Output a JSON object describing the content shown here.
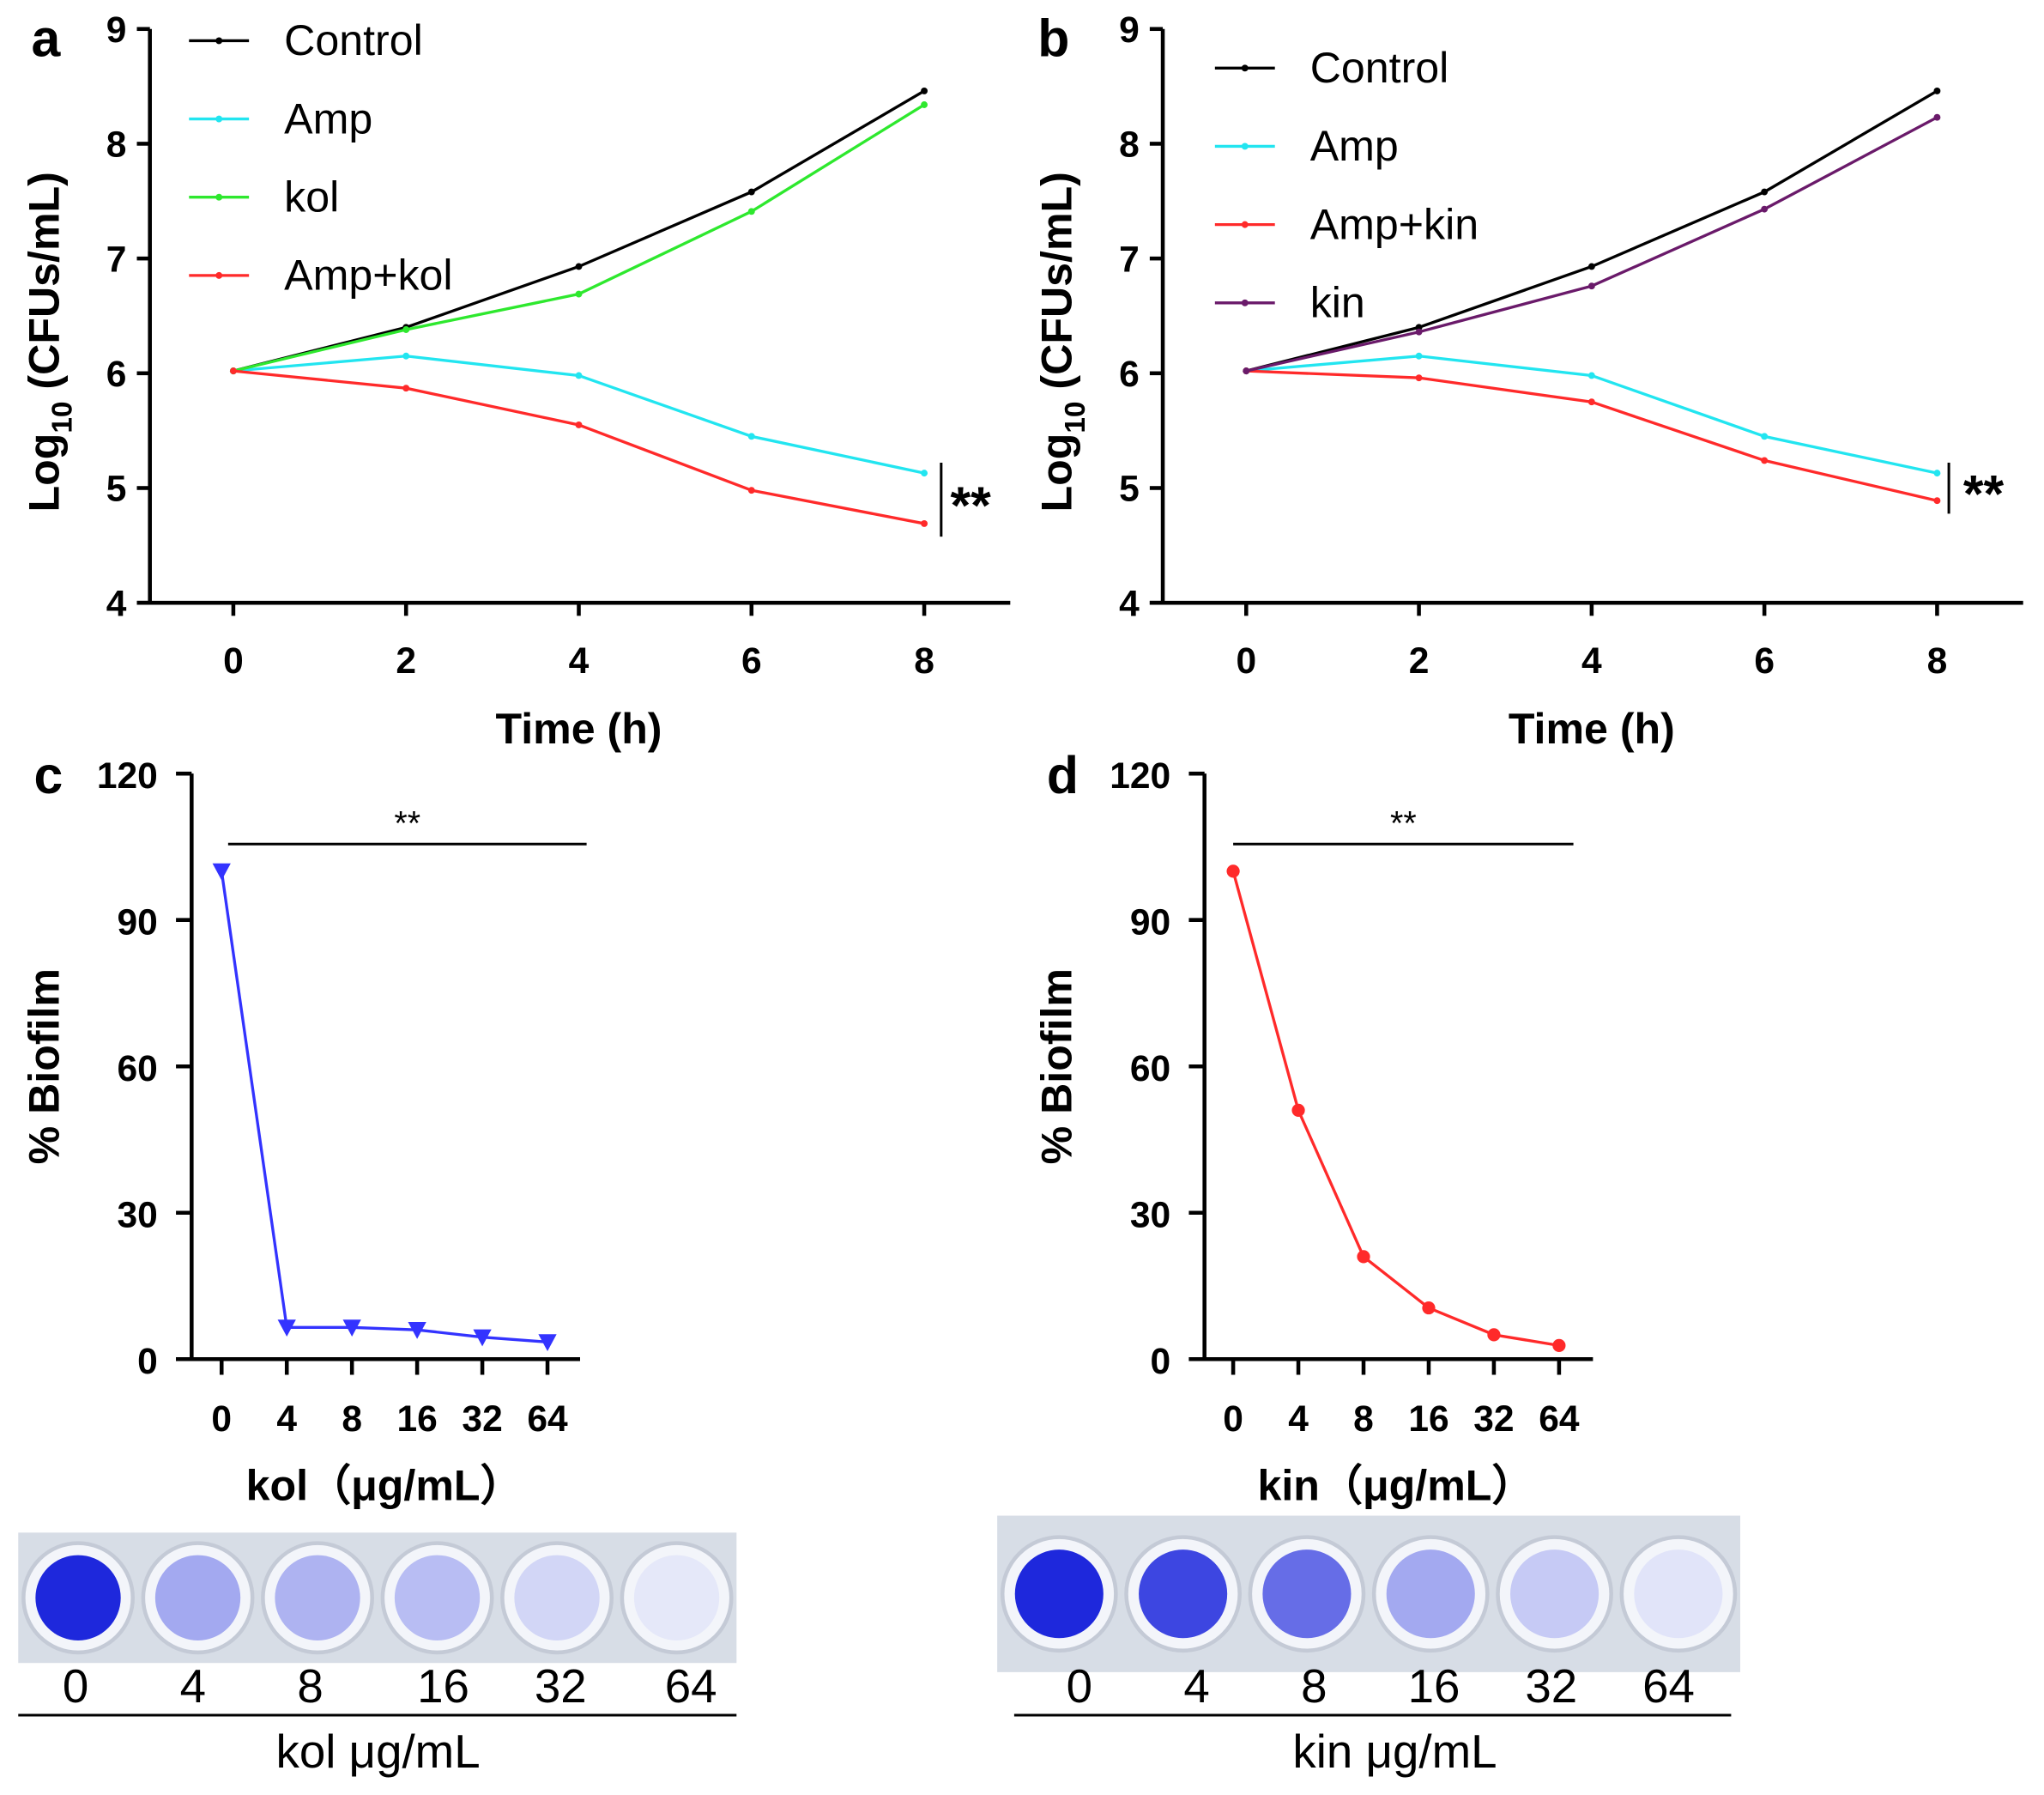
{
  "chart_data": [
    {
      "panel": "a",
      "type": "line",
      "title": "",
      "xlabel": "Time (h)",
      "ylabel_parts": [
        "Log",
        "10",
        " (CFUs/mL)"
      ],
      "x": [
        0,
        2,
        4,
        6,
        8
      ],
      "xticks": [
        "0",
        "2",
        "4",
        "6",
        "8"
      ],
      "yticks": [
        "4",
        "5",
        "6",
        "7",
        "8",
        "9"
      ],
      "xlim": [
        -1,
        9.0
      ],
      "ylim": [
        4,
        9
      ],
      "legend_position": "top-left",
      "series": [
        {
          "name": "Control",
          "color": "#000000",
          "values": [
            6.02,
            6.4,
            6.93,
            7.58,
            8.46
          ]
        },
        {
          "name": "Amp",
          "color": "#22e5f0",
          "values": [
            6.02,
            6.15,
            5.98,
            5.45,
            5.13
          ]
        },
        {
          "name": "kol",
          "color": "#2ee82e",
          "values": [
            6.02,
            6.38,
            6.69,
            7.41,
            8.34
          ]
        },
        {
          "name": "Amp+kol",
          "color": "#ff2a2a",
          "values": [
            6.02,
            5.87,
            5.55,
            4.98,
            4.69
          ]
        }
      ],
      "annotation": "**"
    },
    {
      "panel": "b",
      "type": "line",
      "title": "",
      "xlabel": "Time (h)",
      "ylabel_parts": [
        "Log",
        "10",
        " (CFUs/mL)"
      ],
      "x": [
        0,
        2,
        4,
        6,
        8
      ],
      "xticks": [
        "0",
        "2",
        "4",
        "6",
        "8"
      ],
      "yticks": [
        "4",
        "5",
        "6",
        "7",
        "8",
        "9"
      ],
      "xlim": [
        -1,
        9.0
      ],
      "ylim": [
        4,
        9
      ],
      "legend_position": "top-left",
      "series": [
        {
          "name": "Control",
          "color": "#000000",
          "values": [
            6.02,
            6.4,
            6.93,
            7.58,
            8.46
          ]
        },
        {
          "name": "Amp",
          "color": "#22e5f0",
          "values": [
            6.02,
            6.15,
            5.98,
            5.45,
            5.13
          ]
        },
        {
          "name": "Amp+kin",
          "color": "#ff2a2a",
          "values": [
            6.02,
            5.96,
            5.75,
            5.24,
            4.89
          ]
        },
        {
          "name": "kin",
          "color": "#6a1a6a",
          "values": [
            6.02,
            6.36,
            6.76,
            7.43,
            8.23
          ]
        }
      ],
      "annotation": "**"
    },
    {
      "panel": "c",
      "type": "line",
      "xlabel": "kol（μg/mL）",
      "ylabel": "% Biofilm",
      "categories": [
        "0",
        "4",
        "8",
        "16",
        "32",
        "64"
      ],
      "yticks": [
        "0",
        "30",
        "60",
        "90",
        "120"
      ],
      "ylim": [
        0,
        120
      ],
      "marker": "triangle-down",
      "series": [
        {
          "name": "kol",
          "color": "#3333ff",
          "values": [
            100,
            6.5,
            6.5,
            6.0,
            4.5,
            3.5
          ]
        }
      ],
      "annotation": "**"
    },
    {
      "panel": "d",
      "type": "line",
      "xlabel": "kin（μg/mL）",
      "ylabel": "% Biofilm",
      "categories": [
        "0",
        "4",
        "8",
        "16",
        "32",
        "64"
      ],
      "yticks": [
        "0",
        "30",
        "60",
        "90",
        "120"
      ],
      "ylim": [
        0,
        120
      ],
      "marker": "circle",
      "series": [
        {
          "name": "kin",
          "color": "#ff2a2a",
          "values": [
            100,
            51,
            21,
            10.5,
            5,
            2.8
          ]
        }
      ],
      "annotation": "**"
    }
  ],
  "plates": [
    {
      "panel": "c",
      "labels": [
        "0",
        "4",
        "8",
        "16",
        "32",
        "64"
      ],
      "unit": "kol μg/mL",
      "stain": [
        1.0,
        0.35,
        0.3,
        0.25,
        0.12,
        0.03
      ]
    },
    {
      "panel": "d",
      "labels": [
        "0",
        "4",
        "8",
        "16",
        "32",
        "64"
      ],
      "unit": "kin μg/mL",
      "stain": [
        1.0,
        0.85,
        0.65,
        0.35,
        0.18,
        0.05
      ]
    }
  ]
}
